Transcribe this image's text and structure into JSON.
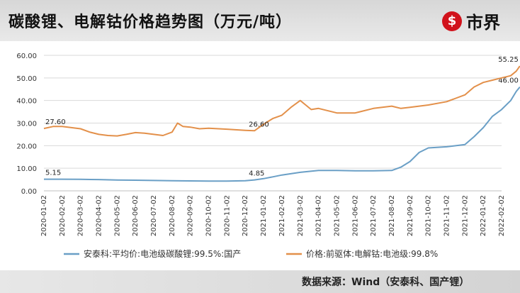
{
  "header": {
    "title": "碳酸锂、电解钴价格趋势图（万元/吨）",
    "logo_mark": "$",
    "logo_text": "市界"
  },
  "footer": {
    "source": "数据来源：Wind（安泰科、国产锂）"
  },
  "colors": {
    "lithium_series": "#6a9fc6",
    "cobalt_series": "#e3904a",
    "logo_red": "#d1121b"
  },
  "chart_data": {
    "type": "line",
    "title": "碳酸锂、电解钴价格趋势图（万元/吨）",
    "xlabel": "",
    "ylabel": "",
    "ylim": [
      0,
      60
    ],
    "yticks": [
      "0.00",
      "10.00",
      "20.00",
      "30.00",
      "40.00",
      "50.00",
      "60.00"
    ],
    "ytick_values": [
      0,
      10,
      20,
      30,
      40,
      50,
      60
    ],
    "x_ticks": [
      "2020-01-02",
      "2020-02-02",
      "2020-03-02",
      "2020-04-02",
      "2020-05-02",
      "2020-06-02",
      "2020-07-02",
      "2020-08-02",
      "2020-09-02",
      "2020-10-02",
      "2020-11-02",
      "2020-12-02",
      "2021-01-02",
      "2021-02-02",
      "2021-03-02",
      "2021-04-02",
      "2021-05-02",
      "2021-06-02",
      "2021-07-02",
      "2021-08-02",
      "2021-09-02",
      "2021-10-02",
      "2021-11-02",
      "2021-12-02",
      "2022-01-02",
      "2022-02-02"
    ],
    "grid": true,
    "legend": "bottom",
    "series": [
      {
        "name": "安泰科:平均价:电池级碳酸锂:99.5%:国产",
        "color": "#6a9fc6",
        "points": [
          [
            0,
            5.15
          ],
          [
            1,
            5.15
          ],
          [
            2,
            5.1
          ],
          [
            3,
            5.0
          ],
          [
            4,
            4.8
          ],
          [
            5,
            4.7
          ],
          [
            6,
            4.6
          ],
          [
            7,
            4.5
          ],
          [
            8,
            4.4
          ],
          [
            9,
            4.3
          ],
          [
            10,
            4.3
          ],
          [
            11,
            4.5
          ],
          [
            11.5,
            4.85
          ],
          [
            12,
            5.4
          ],
          [
            12.5,
            6.2
          ],
          [
            13,
            7.0
          ],
          [
            14,
            8.2
          ],
          [
            15,
            9.0
          ],
          [
            16,
            9.0
          ],
          [
            17,
            8.9
          ],
          [
            18,
            8.9
          ],
          [
            19,
            9.0
          ],
          [
            19.5,
            10.5
          ],
          [
            20,
            13.0
          ],
          [
            20.5,
            17.0
          ],
          [
            21,
            19.0
          ],
          [
            22,
            19.5
          ],
          [
            23,
            20.5
          ],
          [
            23.5,
            24.0
          ],
          [
            24,
            28.0
          ],
          [
            24.5,
            33.0
          ],
          [
            25,
            36.0
          ],
          [
            25.5,
            40.0
          ],
          [
            25.8,
            44.0
          ],
          [
            26,
            46.0
          ]
        ],
        "labels": [
          {
            "x": 0,
            "text": "5.15"
          },
          {
            "x": 11.5,
            "text": "4.85"
          },
          {
            "x": 26,
            "text": "46.00"
          }
        ]
      },
      {
        "name": "价格:前驱体:电解钴:电池级:99.8%",
        "color": "#e3904a",
        "points": [
          [
            0,
            27.6
          ],
          [
            0.5,
            28.5
          ],
          [
            1,
            28.5
          ],
          [
            2,
            27.5
          ],
          [
            2.5,
            26.0
          ],
          [
            3,
            25.0
          ],
          [
            3.5,
            24.5
          ],
          [
            4,
            24.3
          ],
          [
            4.5,
            25.0
          ],
          [
            5,
            25.8
          ],
          [
            5.5,
            25.5
          ],
          [
            6,
            25.0
          ],
          [
            6.5,
            24.5
          ],
          [
            7,
            26.0
          ],
          [
            7.3,
            30.0
          ],
          [
            7.6,
            28.5
          ],
          [
            8,
            28.2
          ],
          [
            8.5,
            27.5
          ],
          [
            9,
            27.7
          ],
          [
            10,
            27.3
          ],
          [
            11,
            26.8
          ],
          [
            11.5,
            26.6
          ],
          [
            12,
            29.5
          ],
          [
            12.5,
            32.0
          ],
          [
            13,
            33.5
          ],
          [
            13.5,
            37.0
          ],
          [
            14,
            40.0
          ],
          [
            14.3,
            38.0
          ],
          [
            14.6,
            36.0
          ],
          [
            15,
            36.5
          ],
          [
            16,
            34.5
          ],
          [
            17,
            34.5
          ],
          [
            18,
            36.5
          ],
          [
            19,
            37.5
          ],
          [
            19.5,
            36.5
          ],
          [
            20,
            37.0
          ],
          [
            21,
            38.0
          ],
          [
            22,
            39.5
          ],
          [
            22.5,
            41.0
          ],
          [
            23,
            42.5
          ],
          [
            23.5,
            46.0
          ],
          [
            24,
            48.0
          ],
          [
            24.5,
            49.0
          ],
          [
            25,
            50.0
          ],
          [
            25.5,
            51.0
          ],
          [
            25.8,
            53.0
          ],
          [
            26,
            55.25
          ]
        ],
        "labels": [
          {
            "x": 0,
            "text": "27.60"
          },
          {
            "x": 11.5,
            "text": "26.60"
          },
          {
            "x": 26,
            "text": "55.25"
          }
        ]
      }
    ]
  }
}
